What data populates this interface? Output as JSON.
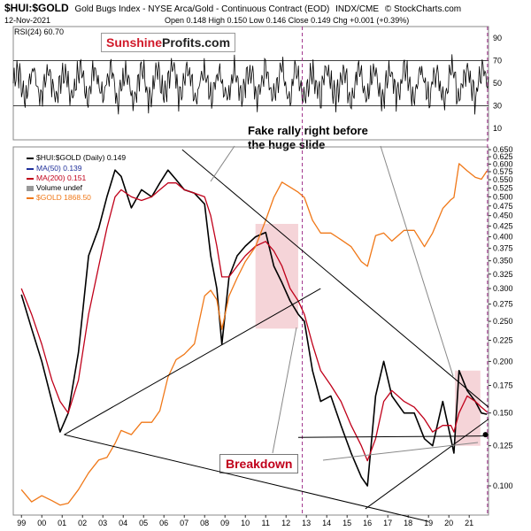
{
  "header": {
    "symbol": "$HUI:$GOLD",
    "description": "Gold Bugs Index - NYSE Arca/Gold - Continuous Contract (EOD)",
    "exchange": "INDX/CME",
    "copyright": "© StockCharts.com",
    "date": "12-Nov-2021",
    "ohlc": "Open 0.148  High 0.150  Low 0.146  Close 0.149  Chg +0.001 (+0.39%)"
  },
  "rsi": {
    "label": "RSI(24) 60.70",
    "levels": [
      90,
      70,
      50,
      30,
      10
    ]
  },
  "logo": {
    "part1": "Sunshine",
    "part2": "Profits.com"
  },
  "legend": [
    {
      "text": "$HUI:$GOLD (Daily) 0.149",
      "color": "#000000"
    },
    {
      "text": "MA(50) 0.139",
      "color": "#1f2f9a"
    },
    {
      "text": "MA(200) 0.151",
      "color": "#c0001a"
    },
    {
      "text": "Volume undef",
      "color": "#000000"
    },
    {
      "text": "$GOLD 1868.50",
      "color": "#f07818"
    }
  ],
  "annotations": {
    "fake_rally": "Fake rally right before\nthe huge slide",
    "breakdown": "Breakdown"
  },
  "chart_data": {
    "type": "line",
    "title": "$HUI:$GOLD",
    "ylabel": "",
    "xlabel": "",
    "y_scale": "log",
    "ylim": [
      0.085,
      0.66
    ],
    "y_ticks": [
      0.65,
      0.625,
      0.6,
      0.575,
      0.55,
      0.525,
      0.5,
      0.475,
      0.45,
      0.425,
      0.4,
      0.375,
      0.35,
      0.325,
      0.3,
      0.275,
      0.25,
      0.225,
      0.2,
      0.175,
      0.15,
      0.125,
      0.1
    ],
    "x_ticks": [
      "99",
      "00",
      "01",
      "02",
      "03",
      "04",
      "05",
      "06",
      "07",
      "08",
      "09",
      "10",
      "11",
      "12",
      "13",
      "14",
      "15",
      "16",
      "17",
      "18",
      "19",
      "20",
      "21"
    ],
    "x": [
      1999.0,
      1999.5,
      2000.0,
      2000.5,
      2000.9,
      2001.3,
      2001.8,
      2002.3,
      2002.8,
      2003.2,
      2003.6,
      2003.9,
      2004.4,
      2004.9,
      2005.4,
      2005.8,
      2006.2,
      2006.6,
      2007.0,
      2007.5,
      2008.0,
      2008.3,
      2008.6,
      2008.85,
      2009.2,
      2009.6,
      2010.0,
      2010.5,
      2011.0,
      2011.4,
      2011.8,
      2012.2,
      2012.6,
      2012.9,
      2013.3,
      2013.7,
      2014.2,
      2014.7,
      2015.2,
      2015.7,
      2016.0,
      2016.4,
      2016.8,
      2017.2,
      2017.8,
      2018.3,
      2018.8,
      2019.2,
      2019.7,
      2020.1,
      2020.25,
      2020.5,
      2020.9,
      2021.3,
      2021.6,
      2021.87
    ],
    "series": [
      {
        "name": "$HUI:$GOLD",
        "color": "#000000",
        "values": [
          0.29,
          0.24,
          0.2,
          0.16,
          0.135,
          0.15,
          0.21,
          0.36,
          0.42,
          0.5,
          0.58,
          0.56,
          0.47,
          0.52,
          0.5,
          0.54,
          0.58,
          0.55,
          0.52,
          0.51,
          0.48,
          0.36,
          0.3,
          0.22,
          0.32,
          0.36,
          0.38,
          0.4,
          0.41,
          0.34,
          0.31,
          0.28,
          0.26,
          0.25,
          0.19,
          0.16,
          0.165,
          0.14,
          0.12,
          0.105,
          0.1,
          0.165,
          0.2,
          0.165,
          0.15,
          0.15,
          0.13,
          0.125,
          0.16,
          0.13,
          0.12,
          0.19,
          0.17,
          0.16,
          0.15,
          0.149
        ]
      },
      {
        "name": "MA(200)",
        "color": "#c0001a",
        "values": [
          0.3,
          0.26,
          0.22,
          0.18,
          0.16,
          0.15,
          0.18,
          0.26,
          0.34,
          0.42,
          0.5,
          0.52,
          0.5,
          0.49,
          0.5,
          0.52,
          0.54,
          0.54,
          0.52,
          0.51,
          0.5,
          0.45,
          0.38,
          0.32,
          0.32,
          0.34,
          0.36,
          0.38,
          0.39,
          0.37,
          0.34,
          0.3,
          0.28,
          0.26,
          0.22,
          0.19,
          0.175,
          0.16,
          0.14,
          0.125,
          0.115,
          0.13,
          0.16,
          0.17,
          0.16,
          0.155,
          0.145,
          0.135,
          0.14,
          0.14,
          0.135,
          0.15,
          0.165,
          0.16,
          0.155,
          0.151
        ]
      },
      {
        "name": "$GOLD",
        "color": "#f07818",
        "values": [
          290,
          270,
          280,
          272,
          265,
          268,
          290,
          320,
          345,
          350,
          380,
          410,
          400,
          430,
          430,
          460,
          560,
          620,
          640,
          680,
          900,
          930,
          880,
          740,
          900,
          1000,
          1100,
          1200,
          1400,
          1600,
          1750,
          1700,
          1650,
          1600,
          1400,
          1300,
          1300,
          1250,
          1200,
          1100,
          1070,
          1280,
          1300,
          1240,
          1320,
          1320,
          1200,
          1300,
          1500,
          1580,
          1600,
          1950,
          1870,
          1800,
          1780,
          1868.5
        ]
      }
    ]
  }
}
